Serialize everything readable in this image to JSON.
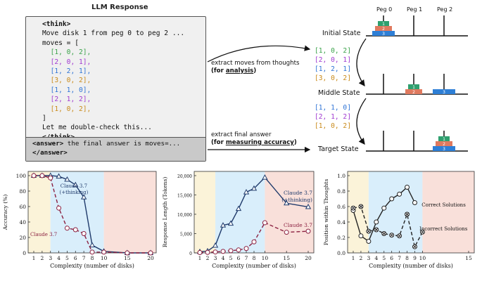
{
  "llm": {
    "title": "LLM Response",
    "think_open": "<think>",
    "line1": "Move disk 1 from peg 0 to peg 2 ...",
    "line2": "moves = [",
    "moves": [
      "[1, 0, 2],",
      "[2, 0, 1],",
      "[1, 2, 1],",
      "[3, 0, 2],",
      "[1, 1, 0],",
      "[2, 1, 2],",
      "[1, 0, 2],"
    ],
    "close_bracket": "]",
    "recheck": "Let me double-check this...",
    "think_close": "</think>",
    "answer_line1_tag": "<answer>",
    "answer_line1_text": " the final answer is moves=...",
    "answer_line2": "</answer>"
  },
  "annotations": {
    "extract_moves": "extract moves  from thoughts",
    "for_analysis_pre": "(for ",
    "for_analysis_u": "analysis",
    "for_analysis_post": ")",
    "extract_final": "extract final answer",
    "for_acc_pre": "(for ",
    "for_acc_u": "measuring accuracy",
    "for_acc_post": ")"
  },
  "hanoi": {
    "pegs": [
      "Peg 0",
      "Peg 1",
      "Peg 2"
    ],
    "initial_state": "Initial State",
    "middle_state": "Middle State",
    "target_state": "Target State",
    "moves_a": [
      "[1, 0, 2]",
      "[2, 0, 1]",
      "[1, 2, 1]",
      "[3, 0, 2]"
    ],
    "moves_b": [
      "[1, 1, 0]",
      "[2, 1, 2]",
      "[1, 0, 2]"
    ],
    "disk_labels": [
      "1",
      "2",
      "3"
    ]
  },
  "colors": {
    "disk1": "#2fa06f",
    "disk2": "#e07a5f",
    "disk3": "#2e7fd6",
    "move_green": "#3aa24a",
    "move_purple": "#a03ad0",
    "move_blue": "#2f74d6",
    "move_orange": "#c98a1a",
    "claude_thinking": "#1f3a6b",
    "claude": "#8b2040",
    "bg_low": "#fbf3d9",
    "bg_mid": "#d9eefb",
    "bg_high": "#f9e0da"
  },
  "chart_data": [
    {
      "type": "line",
      "xlabel": "Complexity (number of disks)",
      "ylabel": "Accuracy (%)",
      "xticks": [
        1,
        2,
        3,
        4,
        5,
        6,
        7,
        8,
        10,
        15,
        20
      ],
      "yticks": [
        0,
        20,
        40,
        60,
        80,
        100
      ],
      "ylim": [
        0,
        100
      ],
      "series": [
        {
          "name": "Claude 3.7 (+thinking)",
          "x": [
            1,
            2,
            3,
            4,
            5,
            6,
            7,
            8,
            10,
            15,
            20
          ],
          "values": [
            100,
            100,
            100,
            99,
            95,
            88,
            72,
            10,
            2,
            0,
            0
          ]
        },
        {
          "name": "Claude 3.7",
          "x": [
            1,
            2,
            3,
            4,
            5,
            6,
            7,
            8,
            10,
            15,
            20
          ],
          "values": [
            100,
            100,
            97,
            58,
            32,
            30,
            25,
            1,
            1,
            0,
            0
          ]
        }
      ],
      "series_labels": [
        "Claude 3.7",
        "(+thinking)",
        "Claude 3.7"
      ]
    },
    {
      "type": "line",
      "xlabel": "Complexity (number of disks)",
      "ylabel": "Response Length (Tokens)",
      "xticks": [
        1,
        2,
        3,
        4,
        5,
        6,
        7,
        8,
        10,
        15,
        20
      ],
      "yticks": [
        "0",
        "5,000",
        "10,000",
        "15,000",
        "20,000"
      ],
      "ylim": [
        0,
        21000
      ],
      "series": [
        {
          "name": "Claude 3.7 (+thinking)",
          "x": [
            1,
            2,
            3,
            4,
            5,
            6,
            7,
            8,
            10,
            15,
            20
          ],
          "values": [
            300,
            500,
            2000,
            7500,
            8000,
            12000,
            16500,
            17500,
            20500,
            13500,
            12500
          ]
        },
        {
          "name": "Claude 3.7",
          "x": [
            1,
            2,
            3,
            4,
            5,
            6,
            7,
            8,
            10,
            15,
            20
          ],
          "values": [
            100,
            150,
            250,
            400,
            600,
            800,
            1200,
            3000,
            8200,
            5600,
            5900
          ]
        }
      ],
      "series_labels": [
        "Claude 3.7",
        "(+thinking)",
        "Claude 3.7"
      ]
    },
    {
      "type": "line",
      "xlabel": "Complexity (number of disks)",
      "ylabel": "Position within Thoughts",
      "xticks": [
        1,
        2,
        3,
        4,
        5,
        6,
        7,
        8,
        9,
        10,
        15
      ],
      "yticks": [
        "0.0",
        "0.2",
        "0.4",
        "0.6",
        "0.8",
        "1.0"
      ],
      "ylim": [
        0,
        1
      ],
      "series": [
        {
          "name": "Correct Solutions",
          "x": [
            1,
            2,
            3,
            4,
            5,
            6,
            7,
            8,
            9
          ],
          "values": [
            0.55,
            0.22,
            0.15,
            0.4,
            0.58,
            0.7,
            0.76,
            0.85,
            0.65
          ]
        },
        {
          "name": "Incorrect Solutions",
          "x": [
            1,
            2,
            3,
            4,
            5,
            6,
            7,
            8,
            9,
            10
          ],
          "values": [
            0.58,
            0.6,
            0.28,
            0.3,
            0.25,
            0.23,
            0.22,
            0.5,
            0.08,
            0.27
          ]
        }
      ]
    }
  ]
}
